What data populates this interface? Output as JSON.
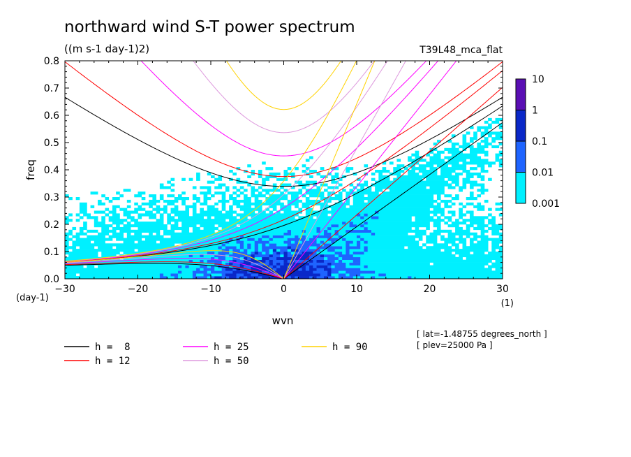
{
  "chart_data": {
    "type": "heatmap",
    "title": "northward wind S-T power spectrum",
    "subtitle": "((m s-1 day-1)2)",
    "run_label": "T39L48_mca_flat",
    "xlabel": "wvn",
    "ylabel": "freq",
    "x_unit": "(1)",
    "y_unit": "(day-1)",
    "xlim": [
      -30,
      30
    ],
    "ylim": [
      0,
      0.8
    ],
    "x_ticks": [
      -30,
      -20,
      -10,
      0,
      10,
      20,
      30
    ],
    "x_tick_labels": [
      "−30",
      "−20",
      "−10",
      "0",
      "10",
      "20",
      "30"
    ],
    "y_ticks": [
      0,
      0.1,
      0.2,
      0.3,
      0.4,
      0.5,
      0.6,
      0.7,
      0.8
    ],
    "y_tick_labels": [
      "0.0",
      "0.1",
      "0.2",
      "0.3",
      "0.4",
      "0.5",
      "0.6",
      "0.7",
      "0.8"
    ],
    "colorbar": {
      "levels": [
        "10",
        "1",
        "0.1",
        "0.01",
        "0.001"
      ],
      "colors": [
        "#5a0fb4",
        "#0a28c8",
        "#1e64ff",
        "#00f0ff"
      ]
    },
    "dispersion_curves": [
      {
        "label": "h =  8",
        "h": 8,
        "color": "#000000"
      },
      {
        "label": "h = 12",
        "h": 12,
        "color": "#ff0000"
      },
      {
        "label": "h = 25",
        "h": 25,
        "color": "#ff00ff"
      },
      {
        "label": "h = 50",
        "h": 50,
        "color": "#dd99dd"
      },
      {
        "label": "h = 90",
        "h": 90,
        "color": "#ffd200"
      }
    ],
    "annotations": [
      "[ lat=-1.48755 degrees_north ]",
      "[ plev=25000 Pa ]"
    ]
  }
}
